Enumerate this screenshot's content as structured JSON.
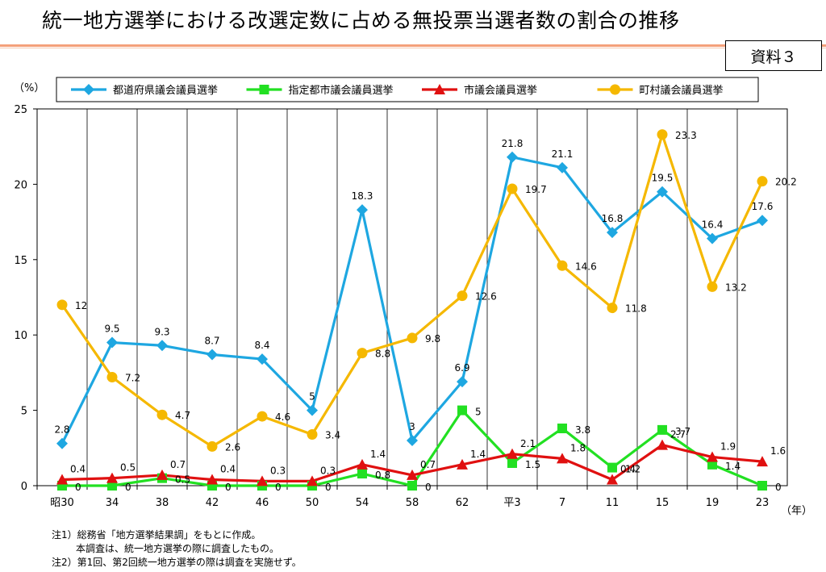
{
  "header": {
    "title": "統一地方選挙における改選定数に占める無投票当選者数の割合の推移",
    "badge": "資料３"
  },
  "chart_data": {
    "type": "line",
    "ylabel": "（%）",
    "xlabel": "（年）",
    "ylim": [
      0,
      25
    ],
    "yticks": [
      0,
      5,
      10,
      15,
      20,
      25
    ],
    "categories": [
      "昭30",
      "34",
      "38",
      "42",
      "46",
      "50",
      "54",
      "58",
      "62",
      "平3",
      "7",
      "11",
      "15",
      "19",
      "23"
    ],
    "grid": true,
    "legend_position": "top",
    "series": [
      {
        "name": "都道府県議会議員選挙",
        "color": "#1ea7e1",
        "marker": "diamond",
        "values": [
          2.8,
          9.5,
          9.3,
          8.7,
          8.4,
          5,
          18.3,
          3,
          6.9,
          21.8,
          21.1,
          16.8,
          19.5,
          16.4,
          17.6
        ]
      },
      {
        "name": "指定都市議会議員選挙",
        "color": "#22e022",
        "marker": "square",
        "values": [
          0,
          0,
          0.5,
          0,
          0,
          0,
          0.8,
          0,
          5,
          1.5,
          3.8,
          1.2,
          3.7,
          1.4,
          0
        ]
      },
      {
        "name": "市議会議員選挙",
        "color": "#e01010",
        "marker": "triangle",
        "values": [
          0.4,
          0.5,
          0.7,
          0.4,
          0.3,
          0.3,
          1.4,
          0.7,
          1.4,
          2.1,
          1.8,
          0.4,
          2.7,
          1.9,
          1.6
        ]
      },
      {
        "name": "町村議会議員選挙",
        "color": "#f5b800",
        "marker": "circle",
        "values": [
          12,
          7.2,
          4.7,
          2.6,
          4.6,
          3.4,
          8.8,
          9.8,
          12.6,
          19.7,
          14.6,
          11.8,
          23.3,
          13.2,
          20.2
        ]
      }
    ]
  },
  "notes": [
    "注1）総務省「地方選挙結果調」をもとに作成。",
    "本調査は、統一地方選挙の際に調査したもの。",
    "注2）第1回、第2回統一地方選挙の際は調査を実施せず。"
  ]
}
